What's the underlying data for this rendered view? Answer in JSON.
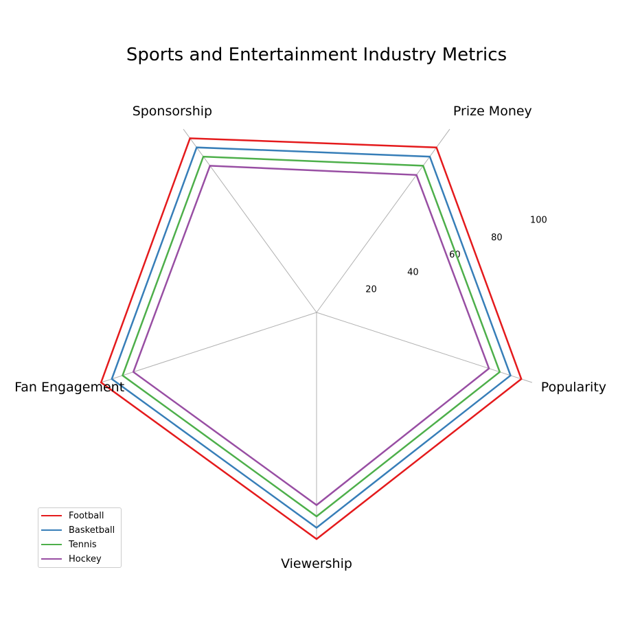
{
  "chart_data": {
    "type": "radar",
    "title": "Sports and Entertainment Industry Metrics",
    "axes": [
      "Popularity",
      "Viewership",
      "Fan Engagement",
      "Sponsorship",
      "Prize Money"
    ],
    "radial_ticks": [
      "20",
      "40",
      "60",
      "80",
      "100"
    ],
    "rlim": [
      0,
      100
    ],
    "grid": "spokes-only",
    "legend_position": "lower-left",
    "series": [
      {
        "name": "Football",
        "color": "#e41a1c",
        "values": [
          95,
          100,
          100,
          95,
          90
        ]
      },
      {
        "name": "Basketball",
        "color": "#377eb8",
        "values": [
          90,
          95,
          95,
          90,
          85
        ]
      },
      {
        "name": "Tennis",
        "color": "#4daf4a",
        "values": [
          85,
          90,
          90,
          85,
          80
        ]
      },
      {
        "name": "Hockey",
        "color": "#984ea3",
        "values": [
          80,
          85,
          85,
          80,
          75
        ]
      }
    ]
  }
}
